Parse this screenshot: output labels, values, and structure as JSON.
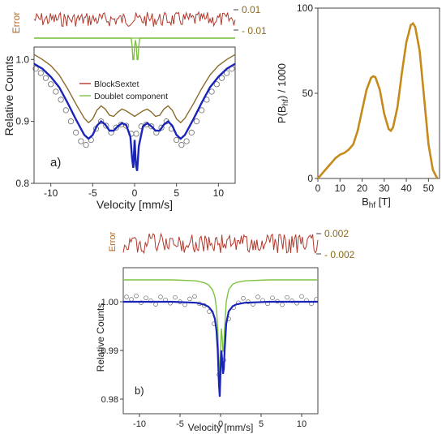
{
  "chart_data": [
    {
      "id": "a",
      "type": "line",
      "panel_label": "a)",
      "xlabel": "Velocity [mm/s]",
      "ylabel": "Relative Counts",
      "xlim": [
        -12,
        12
      ],
      "ylim": [
        0.8,
        1.02
      ],
      "xticks": [
        -10,
        -5,
        0,
        5,
        10
      ],
      "yticks": [
        0.8,
        0.9,
        1.0
      ],
      "yticklabels": [
        "0.8",
        "0.9",
        "1.0"
      ],
      "legend": [
        "BlockSextet",
        "Doublet component"
      ],
      "colors": {
        "data": "#6a6a6a",
        "fit": "#1a24b8",
        "sextet": "#8a6a2a",
        "doublet": "#7fc241",
        "error": "#b0392b",
        "error_label": "#b5651d"
      },
      "error_panel": {
        "label": "Error",
        "ticks": [
          "0.01",
          "- 0.01"
        ],
        "ylim": [
          -0.015,
          0.015
        ]
      },
      "series": [
        {
          "role": "data",
          "x": [
            -11.8,
            -11.2,
            -10.6,
            -10.0,
            -9.4,
            -8.8,
            -8.2,
            -7.6,
            -7.0,
            -6.4,
            -5.8,
            -5.2,
            -4.6,
            -4.0,
            -3.4,
            -2.8,
            -2.2,
            -1.6,
            -1.0,
            -0.4,
            0.2,
            0.8,
            1.4,
            2.0,
            2.6,
            3.2,
            3.8,
            4.4,
            5.0,
            5.6,
            6.2,
            6.8,
            7.4,
            8.0,
            8.6,
            9.2,
            9.8,
            10.4,
            11.0,
            11.6
          ],
          "y": [
            0.985,
            0.978,
            0.97,
            0.96,
            0.948,
            0.935,
            0.918,
            0.9,
            0.882,
            0.868,
            0.862,
            0.87,
            0.888,
            0.9,
            0.893,
            0.882,
            0.89,
            0.895,
            0.893,
            0.88,
            0.88,
            0.892,
            0.895,
            0.892,
            0.882,
            0.89,
            0.9,
            0.888,
            0.87,
            0.862,
            0.868,
            0.882,
            0.9,
            0.918,
            0.935,
            0.948,
            0.96,
            0.97,
            0.978,
            0.985
          ]
        },
        {
          "role": "fit",
          "x": [
            -12,
            -11,
            -10,
            -9,
            -8,
            -7,
            -6,
            -5.5,
            -5,
            -4.5,
            -4,
            -3.5,
            -3,
            -2.5,
            -2,
            -1.5,
            -1,
            -0.5,
            -0.3,
            -0.15,
            0,
            0.15,
            0.3,
            0.5,
            1,
            1.5,
            2,
            2.5,
            3,
            3.5,
            4,
            4.5,
            5,
            5.5,
            6,
            7,
            8,
            9,
            10,
            11,
            12
          ],
          "y": [
            0.993,
            0.985,
            0.972,
            0.955,
            0.93,
            0.903,
            0.878,
            0.872,
            0.878,
            0.893,
            0.9,
            0.895,
            0.885,
            0.885,
            0.892,
            0.897,
            0.894,
            0.875,
            0.84,
            0.825,
            0.87,
            0.83,
            0.82,
            0.86,
            0.892,
            0.897,
            0.892,
            0.885,
            0.885,
            0.895,
            0.9,
            0.893,
            0.878,
            0.872,
            0.878,
            0.903,
            0.93,
            0.955,
            0.972,
            0.985,
            0.993
          ]
        },
        {
          "role": "sextet",
          "name": "BlockSextet",
          "x": [
            -12,
            -11,
            -10,
            -9,
            -8,
            -7,
            -6,
            -5.5,
            -5,
            -4.5,
            -4,
            -3.5,
            -3,
            -2.5,
            -2,
            -1.5,
            -1,
            0,
            1,
            1.5,
            2,
            2.5,
            3,
            3.5,
            4,
            4.5,
            5,
            5.5,
            6,
            7,
            8,
            9,
            10,
            11,
            12
          ],
          "y": [
            1.008,
            1.0,
            0.99,
            0.975,
            0.953,
            0.928,
            0.905,
            0.898,
            0.904,
            0.918,
            0.925,
            0.92,
            0.91,
            0.908,
            0.915,
            0.92,
            0.917,
            0.908,
            0.917,
            0.92,
            0.915,
            0.908,
            0.91,
            0.92,
            0.925,
            0.918,
            0.904,
            0.898,
            0.905,
            0.928,
            0.953,
            0.975,
            0.99,
            1.0,
            1.008
          ]
        }
      ]
    },
    {
      "id": "hf",
      "type": "line",
      "xlabel": "B",
      "xlabel_sub": "hf",
      "xlabel_unit": " [T]",
      "ylabel": "P(B",
      "ylabel_sub": "hf",
      "ylabel_tail": ") / 1000",
      "xlim": [
        0,
        55
      ],
      "ylim": [
        0,
        100
      ],
      "xticks": [
        0,
        10,
        20,
        30,
        40,
        50
      ],
      "yticks": [
        0,
        50,
        100
      ],
      "color": "#c58a1a",
      "x": [
        0,
        2,
        4,
        6,
        8,
        10,
        12,
        14,
        16,
        18,
        20,
        22,
        24,
        25,
        26,
        28,
        30,
        32,
        33,
        34,
        36,
        38,
        40,
        42,
        43,
        44,
        46,
        48,
        50,
        52,
        54
      ],
      "y": [
        0,
        3,
        6,
        9,
        12,
        14,
        15,
        17,
        20,
        28,
        40,
        52,
        59,
        60,
        59.5,
        52,
        38,
        29,
        28,
        30,
        42,
        62,
        80,
        90,
        91,
        89,
        75,
        48,
        20,
        5,
        0
      ]
    },
    {
      "id": "b",
      "type": "line",
      "panel_label": "b)",
      "xlabel": "Velocity [mm/s]",
      "ylabel": "Relative Counts",
      "xlim": [
        -12,
        12
      ],
      "ylim": [
        0.977,
        1.007
      ],
      "xticks": [
        -10,
        -5,
        0,
        5,
        10
      ],
      "yticks": [
        0.98,
        0.99,
        1.0
      ],
      "yticklabels": [
        "0.98",
        "0.99",
        "1.00"
      ],
      "colors": {
        "data": "#6a6a6a",
        "fit": "#1a24b8",
        "doublet": "#7fc241",
        "error": "#b0392b",
        "error_label": "#b5651d"
      },
      "error_panel": {
        "label": "Error",
        "ticks": [
          "0.002",
          "- 0.002"
        ],
        "ylim": [
          -0.003,
          0.003
        ]
      },
      "series": [
        {
          "role": "data",
          "x": [
            -11.6,
            -11.0,
            -10.4,
            -9.8,
            -9.2,
            -8.6,
            -8.0,
            -7.4,
            -6.8,
            -6.2,
            -5.6,
            -5.0,
            -4.4,
            -3.8,
            -3.2,
            -2.6,
            -2.0,
            -1.4,
            -0.8,
            -0.2,
            0.4,
            1.0,
            1.6,
            2.2,
            2.8,
            3.4,
            4.0,
            4.6,
            5.2,
            5.8,
            6.4,
            7.0,
            7.6,
            8.2,
            8.8,
            9.4,
            10.0,
            10.6,
            11.2,
            11.8
          ],
          "y": [
            1.001,
            1.0005,
            1.0012,
            0.9998,
            1.0008,
            1.0002,
            0.9995,
            1.001,
            1.0004,
            0.9997,
            1.0009,
            1.0,
            0.9994,
            1.0006,
            1.0011,
            0.9996,
            0.9992,
            0.998,
            0.9955,
            0.985,
            0.988,
            0.9965,
            0.9988,
            0.9998,
            1.0007,
            1.0,
            0.9995,
            1.001,
            1.0003,
            0.9996,
            1.0008,
            1.0001,
            0.9994,
            1.0009,
            1.0002,
            0.9997,
            1.0011,
            1.0003,
            0.9996,
            1.0005
          ]
        },
        {
          "role": "fit",
          "x": [
            -12,
            -6,
            -3,
            -2,
            -1.5,
            -1,
            -0.7,
            -0.5,
            -0.35,
            -0.2,
            -0.1,
            0,
            0.1,
            0.2,
            0.3,
            0.4,
            0.5,
            0.7,
            1,
            1.5,
            2,
            3,
            6,
            12
          ],
          "y": [
            1.0,
            1.0,
            0.9998,
            0.9994,
            0.999,
            0.998,
            0.9965,
            0.994,
            0.99,
            0.983,
            0.9805,
            0.986,
            0.99,
            0.988,
            0.9852,
            0.9862,
            0.99,
            0.9955,
            0.998,
            0.9991,
            0.9995,
            0.9998,
            1.0,
            1.0
          ]
        },
        {
          "role": "doublet",
          "x": [
            -12,
            -6,
            -3,
            -2,
            -1.5,
            -1,
            -0.7,
            -0.5,
            -0.35,
            -0.2,
            -0.1,
            0,
            0.1,
            0.2,
            0.3,
            0.4,
            0.5,
            0.7,
            1,
            1.5,
            2,
            3,
            6,
            12
          ],
          "y": [
            1.0045,
            1.0045,
            1.0043,
            1.0039,
            1.0035,
            1.0025,
            1.001,
            0.9985,
            0.9945,
            0.9875,
            0.985,
            0.9905,
            0.9945,
            0.9925,
            0.9897,
            0.9907,
            0.9945,
            1.0,
            1.0025,
            1.0036,
            1.004,
            1.0043,
            1.0045,
            1.0045
          ]
        }
      ]
    }
  ]
}
